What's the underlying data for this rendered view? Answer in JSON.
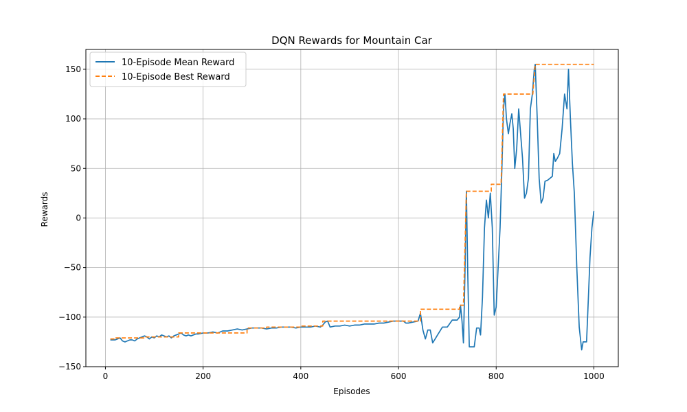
{
  "chart_data": {
    "type": "line",
    "title": "DQN Rewards for Mountain Car",
    "xlabel": "Episodes",
    "ylabel": "Rewards",
    "xlim": [
      -40,
      1050
    ],
    "ylim": [
      -150,
      170
    ],
    "grid": true,
    "legend_position": "top-left",
    "xticks": [
      0,
      200,
      400,
      600,
      800,
      1000
    ],
    "yticks": [
      -150,
      -100,
      -50,
      0,
      50,
      100,
      150
    ],
    "series": [
      {
        "name": "10-Episode Mean Reward",
        "color": "#1f77b4",
        "style": "solid",
        "points": [
          [
            10,
            -123
          ],
          [
            20,
            -123
          ],
          [
            25,
            -122
          ],
          [
            30,
            -121
          ],
          [
            35,
            -124
          ],
          [
            40,
            -125
          ],
          [
            45,
            -124
          ],
          [
            50,
            -123
          ],
          [
            55,
            -123
          ],
          [
            60,
            -124
          ],
          [
            65,
            -122
          ],
          [
            70,
            -121
          ],
          [
            75,
            -120
          ],
          [
            80,
            -119
          ],
          [
            85,
            -120
          ],
          [
            90,
            -122
          ],
          [
            95,
            -120
          ],
          [
            100,
            -121
          ],
          [
            105,
            -119
          ],
          [
            110,
            -120
          ],
          [
            115,
            -118
          ],
          [
            120,
            -119
          ],
          [
            125,
            -120
          ],
          [
            130,
            -119
          ],
          [
            135,
            -121
          ],
          [
            140,
            -119
          ],
          [
            145,
            -118
          ],
          [
            150,
            -117
          ],
          [
            155,
            -116
          ],
          [
            160,
            -118
          ],
          [
            165,
            -119
          ],
          [
            170,
            -118
          ],
          [
            175,
            -119
          ],
          [
            180,
            -118
          ],
          [
            185,
            -117
          ],
          [
            190,
            -117
          ],
          [
            200,
            -116
          ],
          [
            210,
            -116
          ],
          [
            220,
            -115
          ],
          [
            230,
            -116
          ],
          [
            240,
            -114
          ],
          [
            250,
            -114
          ],
          [
            260,
            -113
          ],
          [
            270,
            -112
          ],
          [
            280,
            -113
          ],
          [
            290,
            -112
          ],
          [
            300,
            -111
          ],
          [
            310,
            -111
          ],
          [
            320,
            -111
          ],
          [
            330,
            -112
          ],
          [
            340,
            -111
          ],
          [
            350,
            -111
          ],
          [
            360,
            -110
          ],
          [
            370,
            -110
          ],
          [
            380,
            -110
          ],
          [
            390,
            -111
          ],
          [
            400,
            -110
          ],
          [
            410,
            -110
          ],
          [
            420,
            -110
          ],
          [
            430,
            -109
          ],
          [
            440,
            -110
          ],
          [
            445,
            -108
          ],
          [
            450,
            -105
          ],
          [
            455,
            -104
          ],
          [
            460,
            -110
          ],
          [
            470,
            -109
          ],
          [
            480,
            -109
          ],
          [
            490,
            -108
          ],
          [
            500,
            -109
          ],
          [
            510,
            -108
          ],
          [
            520,
            -108
          ],
          [
            530,
            -107
          ],
          [
            540,
            -107
          ],
          [
            550,
            -107
          ],
          [
            560,
            -106
          ],
          [
            570,
            -106
          ],
          [
            580,
            -105
          ],
          [
            590,
            -104
          ],
          [
            600,
            -104
          ],
          [
            605,
            -104
          ],
          [
            610,
            -104
          ],
          [
            615,
            -106
          ],
          [
            620,
            -106
          ],
          [
            630,
            -105
          ],
          [
            640,
            -104
          ],
          [
            645,
            -96
          ],
          [
            650,
            -113
          ],
          [
            655,
            -122
          ],
          [
            660,
            -113
          ],
          [
            665,
            -113
          ],
          [
            670,
            -126
          ],
          [
            675,
            -122
          ],
          [
            680,
            -118
          ],
          [
            690,
            -110
          ],
          [
            700,
            -110
          ],
          [
            710,
            -103
          ],
          [
            720,
            -103
          ],
          [
            725,
            -100
          ],
          [
            727,
            -88
          ],
          [
            730,
            -104
          ],
          [
            733,
            -126
          ],
          [
            736,
            -60
          ],
          [
            739,
            27
          ],
          [
            742,
            -60
          ],
          [
            745,
            -130
          ],
          [
            752,
            -130
          ],
          [
            755,
            -130
          ],
          [
            760,
            -111
          ],
          [
            765,
            -111
          ],
          [
            768,
            -118
          ],
          [
            772,
            -80
          ],
          [
            776,
            -10
          ],
          [
            780,
            18
          ],
          [
            784,
            0
          ],
          [
            788,
            25
          ],
          [
            792,
            -10
          ],
          [
            796,
            -98
          ],
          [
            800,
            -90
          ],
          [
            805,
            -40
          ],
          [
            808,
            -10
          ],
          [
            812,
            55
          ],
          [
            815,
            110
          ],
          [
            818,
            125
          ],
          [
            821,
            100
          ],
          [
            825,
            85
          ],
          [
            828,
            95
          ],
          [
            832,
            105
          ],
          [
            835,
            90
          ],
          [
            838,
            50
          ],
          [
            842,
            70
          ],
          [
            846,
            110
          ],
          [
            850,
            85
          ],
          [
            854,
            60
          ],
          [
            858,
            20
          ],
          [
            862,
            25
          ],
          [
            866,
            40
          ],
          [
            870,
            110
          ],
          [
            874,
            125
          ],
          [
            878,
            150
          ],
          [
            880,
            155
          ],
          [
            884,
            100
          ],
          [
            888,
            40
          ],
          [
            892,
            15
          ],
          [
            896,
            20
          ],
          [
            900,
            37
          ],
          [
            905,
            38
          ],
          [
            910,
            40
          ],
          [
            915,
            42
          ],
          [
            918,
            65
          ],
          [
            921,
            57
          ],
          [
            925,
            60
          ],
          [
            930,
            65
          ],
          [
            935,
            90
          ],
          [
            940,
            125
          ],
          [
            945,
            110
          ],
          [
            948,
            150
          ],
          [
            952,
            100
          ],
          [
            956,
            55
          ],
          [
            960,
            25
          ],
          [
            965,
            -50
          ],
          [
            970,
            -110
          ],
          [
            975,
            -133
          ],
          [
            978,
            -125
          ],
          [
            985,
            -125
          ],
          [
            988,
            -90
          ],
          [
            992,
            -40
          ],
          [
            996,
            -10
          ],
          [
            1000,
            7
          ]
        ]
      },
      {
        "name": "10-Episode Best Reward",
        "color": "#ff7f0e",
        "style": "dashed",
        "points": [
          [
            10,
            -122
          ],
          [
            20,
            -122
          ],
          [
            20,
            -121
          ],
          [
            80,
            -121
          ],
          [
            80,
            -120
          ],
          [
            150,
            -120
          ],
          [
            150,
            -116
          ],
          [
            290,
            -116
          ],
          [
            290,
            -111
          ],
          [
            330,
            -111
          ],
          [
            330,
            -110
          ],
          [
            400,
            -110
          ],
          [
            400,
            -109
          ],
          [
            445,
            -109
          ],
          [
            445,
            -104
          ],
          [
            645,
            -104
          ],
          [
            645,
            -92
          ],
          [
            725,
            -92
          ],
          [
            725,
            -88
          ],
          [
            733,
            -88
          ],
          [
            739,
            27
          ],
          [
            790,
            27
          ],
          [
            790,
            34
          ],
          [
            810,
            34
          ],
          [
            815,
            125
          ],
          [
            875,
            125
          ],
          [
            880,
            155
          ],
          [
            1000,
            155
          ]
        ]
      }
    ]
  }
}
